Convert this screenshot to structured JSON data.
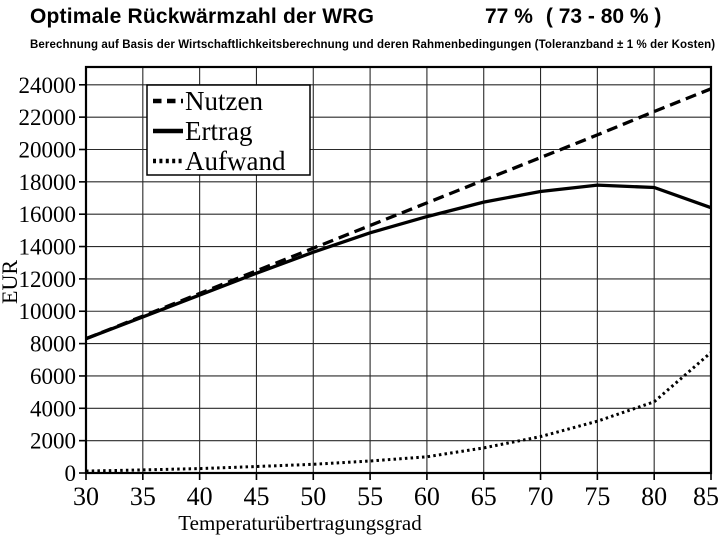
{
  "header": {
    "title": "Optimale Rückwärmzahl der WRG",
    "result_value": "77 %",
    "result_range": "( 73 - 80 % )",
    "subtitle": "Berechnung auf Basis der Wirtschaftlichkeitsberechnung und deren Rahmenbedingungen (Toleranzband ± 1 % der Kosten)"
  },
  "chart_data": {
    "type": "line",
    "x": [
      30,
      35,
      40,
      45,
      50,
      55,
      60,
      65,
      70,
      75,
      80,
      85
    ],
    "series": [
      {
        "name": "Nutzen",
        "line_style": "dashed",
        "values": [
          8300,
          9700,
          11100,
          12500,
          13900,
          15300,
          16700,
          18100,
          19500,
          20900,
          22350,
          23750
        ]
      },
      {
        "name": "Ertrag",
        "line_style": "solid",
        "values": [
          8300,
          9650,
          11000,
          12350,
          13650,
          14850,
          15850,
          16750,
          17400,
          17800,
          17650,
          16400
        ]
      },
      {
        "name": "Aufwand",
        "line_style": "dotted",
        "values": [
          120,
          190,
          270,
          400,
          540,
          740,
          1000,
          1550,
          2250,
          3200,
          4400,
          7450
        ]
      }
    ],
    "xlabel": "Temperaturübertragungsgrad",
    "ylabel": "EUR",
    "xlim": [
      30,
      85
    ],
    "ylim": [
      0,
      25100
    ],
    "xticks": [
      30,
      35,
      40,
      45,
      50,
      55,
      60,
      65,
      70,
      75,
      80,
      85
    ],
    "yticks": [
      0,
      2000,
      4000,
      6000,
      8000,
      10000,
      12000,
      14000,
      16000,
      18000,
      20000,
      22000,
      24000
    ],
    "grid": true,
    "legend_position": "top-left",
    "line_color": "#000000",
    "background": "#ffffff"
  }
}
